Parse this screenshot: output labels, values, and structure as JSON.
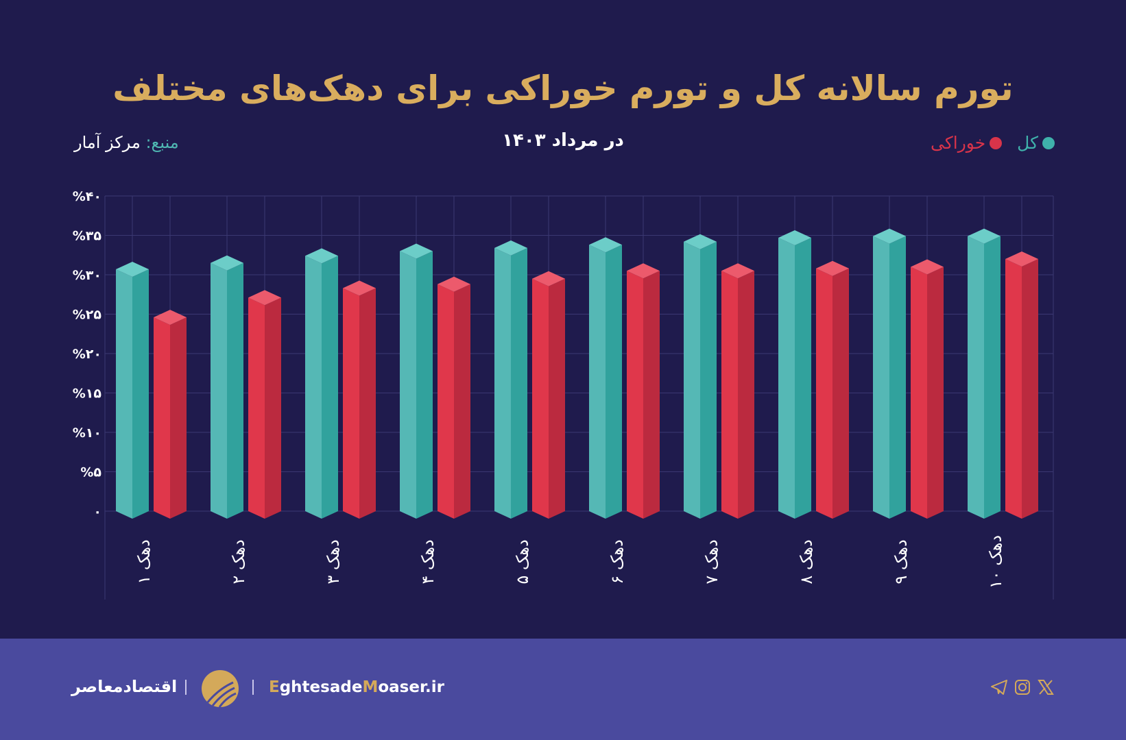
{
  "header": {
    "title": "تورم سالانه کل و تورم خوراکی برای دهک‌های مختلف",
    "subtitle": "در مرداد ۱۴۰۳",
    "source_label": "منبع:",
    "source_value": "مرکز آمار"
  },
  "colors": {
    "background": "#1f1b4d",
    "title": "#d9ad5e",
    "total": "#55b8b5",
    "total_dark": "#31a29d",
    "food": "#e0374b",
    "food_dark": "#bb2a3f",
    "footer": "#4a4a9e"
  },
  "chart_data": {
    "type": "bar",
    "title": "تورم سالانه کل و تورم خوراکی برای دهک‌های مختلف",
    "subtitle": "در مرداد ۱۴۰۳",
    "categories": [
      "دهک ۱",
      "دهک ۲",
      "دهک ۳",
      "دهک ۴",
      "دهک ۵",
      "دهک ۶",
      "دهک ۷",
      "دهک ۸",
      "دهک ۹",
      "دهک ۱۰"
    ],
    "series": [
      {
        "name": "کل",
        "color": "#55b8b5",
        "values": [
          30.7,
          31.5,
          32.4,
          33.0,
          33.4,
          33.8,
          34.2,
          34.7,
          34.9,
          34.9
        ]
      },
      {
        "name": "خوراکی",
        "color": "#e0374b",
        "values": [
          24.6,
          27.1,
          28.3,
          28.8,
          29.5,
          30.5,
          30.5,
          30.8,
          31.0,
          32.0
        ]
      }
    ],
    "ylim": [
      0,
      40
    ],
    "yticks": [
      0,
      5,
      10,
      15,
      20,
      25,
      30,
      35,
      40
    ],
    "ytick_labels": [
      "۰",
      "%۵",
      "%۱۰",
      "%۱۵",
      "%۲۰",
      "%۲۵",
      "%۳۰",
      "%۳۵",
      "%۴۰"
    ],
    "grid": true,
    "legend_position": "top-right",
    "style": "3d-prism"
  },
  "footer": {
    "brand_fa": "اقتصادمعاصر",
    "site_parts": [
      "E",
      "ghtesade",
      "M",
      "oaser.ir"
    ],
    "social_icons": [
      "telegram-icon",
      "instagram-icon",
      "x-icon"
    ]
  }
}
